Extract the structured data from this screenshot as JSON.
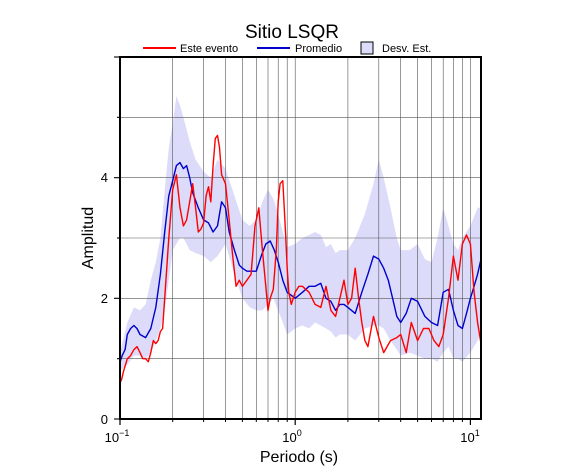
{
  "chart_data": {
    "type": "line",
    "title": "Sitio LSQR",
    "xlabel": "Periodo (s)",
    "ylabel": "Amplitud",
    "xscale": "log",
    "xlim": [
      0.1,
      11.5
    ],
    "ylim": [
      0,
      6
    ],
    "grid": true,
    "legend_position": "top",
    "x_ticks": [
      {
        "base": "10",
        "exp": "−1"
      },
      {
        "base": "10",
        "exp": "0"
      },
      {
        "base": "10",
        "exp": "1"
      }
    ],
    "y_ticks": [
      "0",
      "2",
      "4"
    ],
    "colors": {
      "este_evento": "#ff0000",
      "promedio": "#0000cc",
      "desv_band": "#dcdcfa",
      "axes": "#000000",
      "grid": "#555555"
    },
    "series": [
      {
        "name": "Este evento",
        "x": [
          0.1,
          0.102,
          0.105,
          0.11,
          0.115,
          0.12,
          0.125,
          0.13,
          0.135,
          0.14,
          0.145,
          0.15,
          0.155,
          0.16,
          0.165,
          0.17,
          0.175,
          0.18,
          0.19,
          0.2,
          0.21,
          0.22,
          0.23,
          0.24,
          0.25,
          0.26,
          0.27,
          0.28,
          0.29,
          0.3,
          0.31,
          0.32,
          0.33,
          0.34,
          0.35,
          0.36,
          0.37,
          0.38,
          0.4,
          0.42,
          0.44,
          0.46,
          0.48,
          0.5,
          0.53,
          0.56,
          0.59,
          0.62,
          0.65,
          0.68,
          0.7,
          0.72,
          0.75,
          0.78,
          0.8,
          0.82,
          0.85,
          0.88,
          0.9,
          0.92,
          0.95,
          1.0,
          1.05,
          1.1,
          1.2,
          1.3,
          1.4,
          1.5,
          1.6,
          1.7,
          1.8,
          1.9,
          2.0,
          2.1,
          2.2,
          2.3,
          2.4,
          2.5,
          2.6,
          2.8,
          3.0,
          3.2,
          3.5,
          3.8,
          4.0,
          4.3,
          4.6,
          5.0,
          5.4,
          5.8,
          6.2,
          6.6,
          7.0,
          7.5,
          8.0,
          8.5,
          9.0,
          9.5,
          10.0,
          10.5,
          11.0,
          11.5
        ],
        "values": [
          0.6,
          0.65,
          0.8,
          1.0,
          1.05,
          1.15,
          1.2,
          1.1,
          1.0,
          1.0,
          0.95,
          1.1,
          1.3,
          1.25,
          1.3,
          1.45,
          1.5,
          2.0,
          3.0,
          3.8,
          4.05,
          3.5,
          3.2,
          3.3,
          3.6,
          3.9,
          3.5,
          3.1,
          3.15,
          3.25,
          3.7,
          3.85,
          3.6,
          4.2,
          4.65,
          4.7,
          4.5,
          4.05,
          3.9,
          3.3,
          2.7,
          2.2,
          2.3,
          2.2,
          2.3,
          2.4,
          3.2,
          3.5,
          2.8,
          2.2,
          1.8,
          2.0,
          2.15,
          2.8,
          3.6,
          3.9,
          3.95,
          3.1,
          2.5,
          2.1,
          1.9,
          2.1,
          2.2,
          2.2,
          2.1,
          1.9,
          1.85,
          2.2,
          1.8,
          1.7,
          2.0,
          2.3,
          1.9,
          2.0,
          2.5,
          2.0,
          1.6,
          1.3,
          1.2,
          1.7,
          1.35,
          1.1,
          1.3,
          1.35,
          1.4,
          1.1,
          1.6,
          1.3,
          1.5,
          1.5,
          1.3,
          1.2,
          1.4,
          2.0,
          2.7,
          2.3,
          2.9,
          3.05,
          2.9,
          2.1,
          1.6,
          1.25
        ]
      },
      {
        "name": "Promedio",
        "x": [
          0.1,
          0.103,
          0.107,
          0.11,
          0.115,
          0.12,
          0.125,
          0.13,
          0.14,
          0.15,
          0.16,
          0.17,
          0.18,
          0.19,
          0.2,
          0.21,
          0.22,
          0.23,
          0.24,
          0.25,
          0.26,
          0.28,
          0.3,
          0.32,
          0.34,
          0.36,
          0.38,
          0.4,
          0.42,
          0.45,
          0.48,
          0.5,
          0.53,
          0.56,
          0.6,
          0.64,
          0.68,
          0.72,
          0.76,
          0.8,
          0.85,
          0.9,
          0.95,
          1.0,
          1.1,
          1.2,
          1.3,
          1.4,
          1.5,
          1.6,
          1.7,
          1.8,
          1.9,
          2.0,
          2.2,
          2.4,
          2.6,
          2.8,
          3.0,
          3.2,
          3.4,
          3.6,
          3.8,
          4.0,
          4.3,
          4.6,
          5.0,
          5.5,
          6.0,
          6.5,
          7.0,
          7.5,
          8.0,
          8.5,
          9.0,
          9.5,
          10.0,
          10.5,
          11.0,
          11.5
        ],
        "values": [
          0.95,
          1.05,
          1.15,
          1.4,
          1.5,
          1.55,
          1.5,
          1.4,
          1.35,
          1.5,
          1.85,
          2.4,
          3.1,
          3.7,
          3.95,
          4.2,
          4.25,
          4.15,
          4.2,
          4.0,
          3.75,
          3.5,
          3.3,
          3.25,
          3.1,
          3.2,
          3.6,
          3.5,
          3.1,
          2.8,
          2.55,
          2.5,
          2.45,
          2.45,
          2.45,
          2.7,
          2.9,
          2.95,
          2.8,
          2.6,
          2.3,
          2.1,
          2.05,
          2.0,
          2.1,
          2.2,
          2.2,
          2.25,
          2.0,
          1.95,
          1.8,
          1.9,
          1.9,
          1.85,
          1.75,
          2.1,
          2.4,
          2.7,
          2.65,
          2.5,
          2.3,
          2.0,
          1.7,
          1.6,
          1.75,
          2.0,
          1.95,
          1.7,
          1.6,
          1.55,
          2.1,
          2.15,
          1.8,
          1.55,
          1.5,
          1.75,
          2.0,
          2.2,
          2.4,
          2.65
        ]
      }
    ],
    "band": {
      "name": "Desv. Est.",
      "x": [
        0.1,
        0.11,
        0.12,
        0.13,
        0.14,
        0.15,
        0.16,
        0.17,
        0.18,
        0.19,
        0.2,
        0.21,
        0.22,
        0.23,
        0.24,
        0.25,
        0.27,
        0.3,
        0.33,
        0.36,
        0.4,
        0.45,
        0.5,
        0.55,
        0.6,
        0.65,
        0.7,
        0.75,
        0.8,
        0.85,
        0.9,
        1.0,
        1.1,
        1.2,
        1.3,
        1.4,
        1.5,
        1.6,
        1.7,
        1.8,
        2.0,
        2.2,
        2.5,
        2.8,
        3.0,
        3.2,
        3.5,
        3.8,
        4.0,
        4.5,
        5.0,
        5.5,
        6.0,
        6.5,
        7.0,
        7.5,
        8.0,
        8.5,
        9.0,
        10.0,
        11.0,
        11.5
      ],
      "upper": [
        1.1,
        1.6,
        1.85,
        1.8,
        1.9,
        2.3,
        2.6,
        3.0,
        3.8,
        4.5,
        4.9,
        5.35,
        5.2,
        5.0,
        4.8,
        4.6,
        4.3,
        4.1,
        4.0,
        4.3,
        4.15,
        3.7,
        3.3,
        3.2,
        3.3,
        3.6,
        3.8,
        3.65,
        3.4,
        3.1,
        2.85,
        2.9,
        3.0,
        3.05,
        3.1,
        3.05,
        2.85,
        2.9,
        2.75,
        2.8,
        2.8,
        3.0,
        3.4,
        3.9,
        4.3,
        4.0,
        3.5,
        3.0,
        2.8,
        2.8,
        2.9,
        2.65,
        2.6,
        3.0,
        3.5,
        3.2,
        2.9,
        2.8,
        3.0,
        3.2,
        3.5,
        3.5
      ],
      "lower": [
        0.8,
        0.9,
        1.05,
        1.05,
        1.0,
        1.1,
        1.3,
        1.5,
        1.8,
        2.3,
        2.8,
        2.9,
        3.0,
        3.0,
        2.9,
        2.8,
        2.75,
        2.7,
        2.6,
        2.7,
        2.9,
        2.4,
        2.0,
        1.85,
        1.8,
        1.8,
        1.9,
        2.0,
        1.8,
        1.6,
        1.4,
        1.5,
        1.55,
        1.5,
        1.6,
        1.55,
        1.5,
        1.45,
        1.35,
        1.4,
        1.4,
        1.3,
        1.5,
        1.55,
        1.55,
        1.5,
        1.3,
        1.15,
        1.05,
        1.1,
        1.05,
        1.0,
        1.0,
        0.95,
        1.1,
        1.2,
        1.0,
        1.0,
        0.95,
        1.1,
        1.3,
        1.45
      ]
    }
  }
}
